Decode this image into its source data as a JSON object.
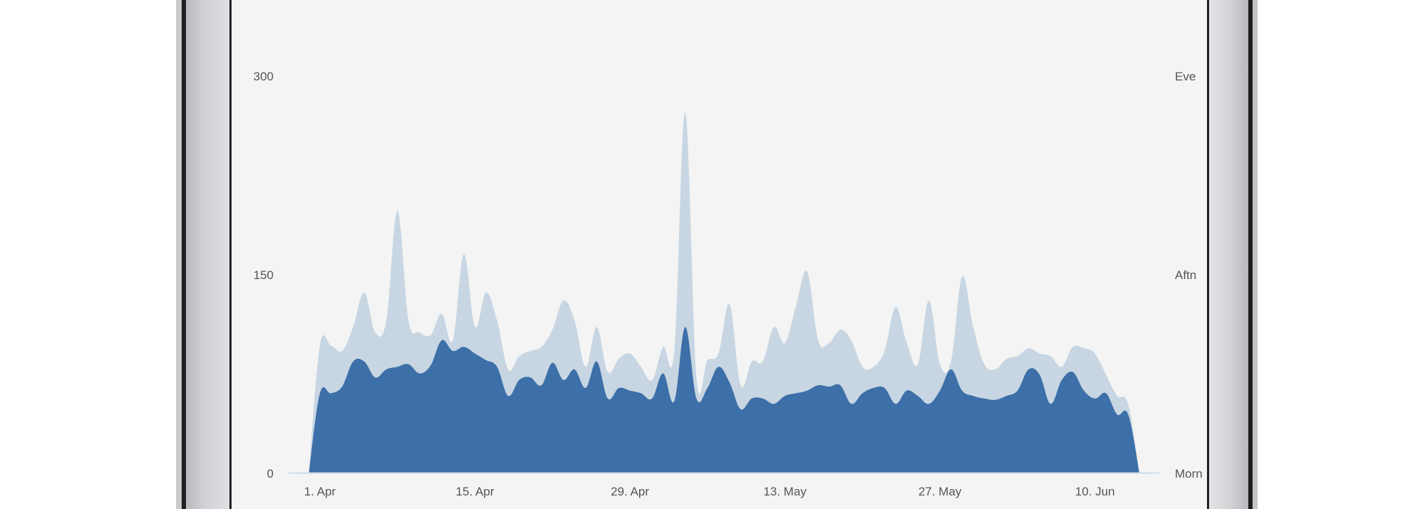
{
  "colors": {
    "primary_area": "#3d6fa8",
    "secondary_area": "#c7d6e2",
    "axis_line": "#cfdce8",
    "tick_text": "#555555",
    "screen_bg": "#f4f4f4"
  },
  "chart_data": {
    "type": "area",
    "y_left": {
      "ticks": [
        "0",
        "150",
        "300"
      ],
      "range": [
        0,
        300
      ]
    },
    "y_right": {
      "ticks": [
        "Morn",
        "Aftn",
        "Eve"
      ]
    },
    "x_ticks": [
      "1. Apr",
      "15. Apr",
      "29. Apr",
      "13. May",
      "27. May",
      "10. Jun"
    ],
    "x_tick_days": [
      0,
      14,
      28,
      42,
      56,
      70
    ],
    "series": [
      {
        "points": [
          [
            -1,
            0
          ],
          [
            0,
            60
          ],
          [
            1,
            60
          ],
          [
            2,
            65
          ],
          [
            3,
            84
          ],
          [
            4,
            84
          ],
          [
            5,
            72
          ],
          [
            6,
            78
          ],
          [
            7,
            80
          ],
          [
            8,
            82
          ],
          [
            9,
            75
          ],
          [
            10,
            81
          ],
          [
            11,
            100
          ],
          [
            12,
            92
          ],
          [
            13,
            95
          ],
          [
            14,
            90
          ],
          [
            15,
            85
          ],
          [
            16,
            80
          ],
          [
            17,
            58
          ],
          [
            18,
            70
          ],
          [
            19,
            72
          ],
          [
            20,
            66
          ],
          [
            21,
            83
          ],
          [
            22,
            70
          ],
          [
            23,
            78
          ],
          [
            24,
            64
          ],
          [
            25,
            84
          ],
          [
            26,
            56
          ],
          [
            27,
            64
          ],
          [
            28,
            62
          ],
          [
            29,
            60
          ],
          [
            30,
            56
          ],
          [
            31,
            75
          ],
          [
            32,
            54
          ],
          [
            33,
            110
          ],
          [
            34,
            56
          ],
          [
            35,
            64
          ],
          [
            36,
            80
          ],
          [
            37,
            68
          ],
          [
            38,
            48
          ],
          [
            39,
            56
          ],
          [
            40,
            56
          ],
          [
            41,
            52
          ],
          [
            42,
            58
          ],
          [
            43,
            60
          ],
          [
            44,
            62
          ],
          [
            45,
            66
          ],
          [
            46,
            65
          ],
          [
            47,
            66
          ],
          [
            48,
            52
          ],
          [
            49,
            60
          ],
          [
            50,
            64
          ],
          [
            51,
            64
          ],
          [
            52,
            52
          ],
          [
            53,
            62
          ],
          [
            54,
            58
          ],
          [
            55,
            52
          ],
          [
            56,
            62
          ],
          [
            57,
            78
          ],
          [
            58,
            62
          ],
          [
            59,
            58
          ],
          [
            60,
            56
          ],
          [
            61,
            55
          ],
          [
            62,
            58
          ],
          [
            63,
            62
          ],
          [
            64,
            78
          ],
          [
            65,
            74
          ],
          [
            66,
            52
          ],
          [
            67,
            70
          ],
          [
            68,
            76
          ],
          [
            69,
            62
          ],
          [
            70,
            56
          ],
          [
            71,
            60
          ],
          [
            72,
            44
          ],
          [
            73,
            44
          ],
          [
            74,
            0
          ]
        ]
      },
      {
        "points": [
          [
            -1,
            0
          ],
          [
            0,
            96
          ],
          [
            1,
            96
          ],
          [
            2,
            92
          ],
          [
            3,
            110
          ],
          [
            4,
            136
          ],
          [
            5,
            106
          ],
          [
            6,
            115
          ],
          [
            7,
            198
          ],
          [
            8,
            115
          ],
          [
            9,
            106
          ],
          [
            10,
            104
          ],
          [
            11,
            120
          ],
          [
            12,
            100
          ],
          [
            13,
            165
          ],
          [
            14,
            110
          ],
          [
            15,
            136
          ],
          [
            16,
            115
          ],
          [
            17,
            78
          ],
          [
            18,
            88
          ],
          [
            19,
            92
          ],
          [
            20,
            95
          ],
          [
            21,
            108
          ],
          [
            22,
            130
          ],
          [
            23,
            115
          ],
          [
            24,
            80
          ],
          [
            25,
            110
          ],
          [
            26,
            76
          ],
          [
            27,
            86
          ],
          [
            28,
            90
          ],
          [
            29,
            80
          ],
          [
            30,
            70
          ],
          [
            31,
            95
          ],
          [
            32,
            92
          ],
          [
            33,
            272
          ],
          [
            34,
            72
          ],
          [
            35,
            85
          ],
          [
            36,
            90
          ],
          [
            37,
            127
          ],
          [
            38,
            66
          ],
          [
            39,
            84
          ],
          [
            40,
            84
          ],
          [
            41,
            110
          ],
          [
            42,
            98
          ],
          [
            43,
            126
          ],
          [
            44,
            152
          ],
          [
            45,
            100
          ],
          [
            46,
            98
          ],
          [
            47,
            108
          ],
          [
            48,
            100
          ],
          [
            49,
            80
          ],
          [
            50,
            80
          ],
          [
            51,
            92
          ],
          [
            52,
            125
          ],
          [
            53,
            98
          ],
          [
            54,
            82
          ],
          [
            55,
            130
          ],
          [
            56,
            82
          ],
          [
            57,
            84
          ],
          [
            58,
            148
          ],
          [
            59,
            110
          ],
          [
            60,
            82
          ],
          [
            61,
            78
          ],
          [
            62,
            86
          ],
          [
            63,
            88
          ],
          [
            64,
            94
          ],
          [
            65,
            90
          ],
          [
            66,
            88
          ],
          [
            67,
            80
          ],
          [
            68,
            95
          ],
          [
            69,
            94
          ],
          [
            70,
            90
          ],
          [
            71,
            74
          ],
          [
            72,
            58
          ],
          [
            73,
            52
          ],
          [
            74,
            0
          ]
        ]
      }
    ]
  }
}
